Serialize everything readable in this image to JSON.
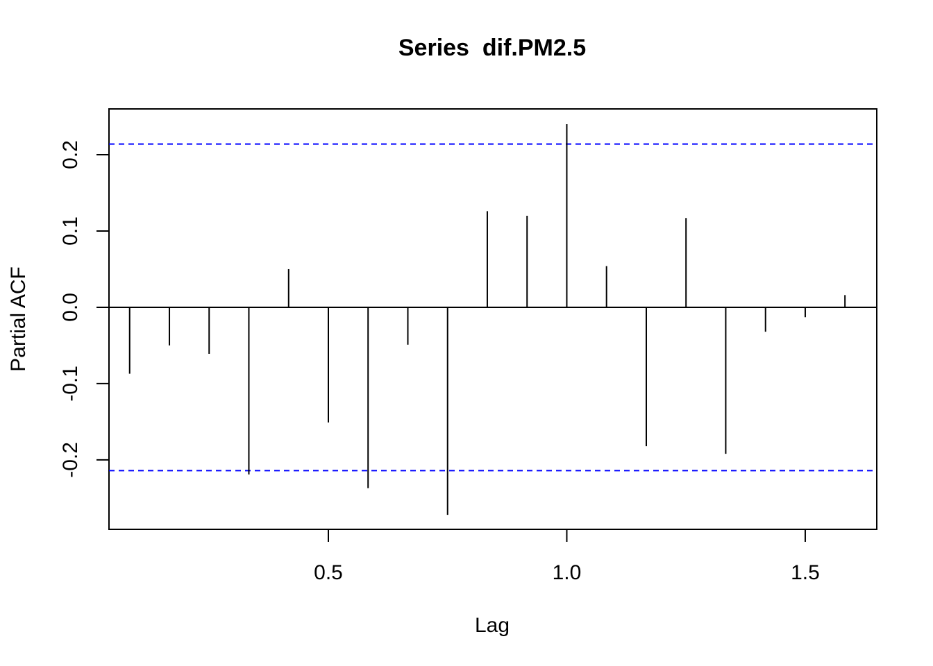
{
  "chart_data": {
    "type": "bar",
    "title": "Series  dif.PM2.5",
    "xlabel": "Lag",
    "ylabel": "Partial ACF",
    "xlim": [
      0.04,
      1.65
    ],
    "ylim": [
      -0.291,
      0.26
    ],
    "x_ticks": [
      {
        "value": 0.5,
        "label": "0.5"
      },
      {
        "value": 1.0,
        "label": "1.0"
      },
      {
        "value": 1.5,
        "label": "1.5"
      }
    ],
    "y_ticks": [
      {
        "value": -0.2,
        "label": "-0.2"
      },
      {
        "value": -0.1,
        "label": "-0.1"
      },
      {
        "value": 0.0,
        "label": "0.0"
      },
      {
        "value": 0.1,
        "label": "0.1"
      },
      {
        "value": 0.2,
        "label": "0.2"
      }
    ],
    "lags": [
      0.0833,
      0.1667,
      0.25,
      0.3333,
      0.4167,
      0.5,
      0.5833,
      0.6667,
      0.75,
      0.8333,
      0.9167,
      1.0,
      1.0833,
      1.1667,
      1.25,
      1.3333,
      1.4167,
      1.5,
      1.5833
    ],
    "values": [
      -0.087,
      -0.05,
      -0.061,
      -0.219,
      0.05,
      -0.151,
      -0.237,
      -0.049,
      -0.272,
      0.126,
      0.12,
      0.24,
      0.054,
      -0.182,
      0.117,
      -0.192,
      -0.032,
      -0.013,
      0.016
    ],
    "confidence_limit": 0.214,
    "confidence_color": "#0000ff",
    "spike_color": "#000000",
    "grid": false
  }
}
